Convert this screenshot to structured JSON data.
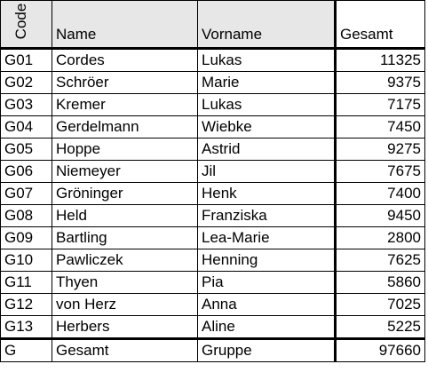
{
  "header": {
    "code": "Code",
    "name": "Name",
    "vorname": "Vorname",
    "gesamt": "Gesamt"
  },
  "rows": [
    {
      "code": "G01",
      "name": "Cordes",
      "vorname": "Lukas",
      "gesamt": "11325"
    },
    {
      "code": "G02",
      "name": "Schröer",
      "vorname": "Marie",
      "gesamt": "9375"
    },
    {
      "code": "G03",
      "name": "Kremer",
      "vorname": "Lukas",
      "gesamt": "7175"
    },
    {
      "code": "G04",
      "name": "Gerdelmann",
      "vorname": "Wiebke",
      "gesamt": "7450"
    },
    {
      "code": "G05",
      "name": "Hoppe",
      "vorname": "Astrid",
      "gesamt": "9275"
    },
    {
      "code": "G06",
      "name": "Niemeyer",
      "vorname": "Jil",
      "gesamt": "7675"
    },
    {
      "code": "G07",
      "name": "Gröninger",
      "vorname": "Henk",
      "gesamt": "7400"
    },
    {
      "code": "G08",
      "name": "Held",
      "vorname": "Franziska",
      "gesamt": "9450"
    },
    {
      "code": "G09",
      "name": "Bartling",
      "vorname": "Lea-Marie",
      "gesamt": "2800"
    },
    {
      "code": "G10",
      "name": "Pawliczek",
      "vorname": "Henning",
      "gesamt": "7625"
    },
    {
      "code": "G11",
      "name": "Thyen",
      "vorname": "Pia",
      "gesamt": "5860"
    },
    {
      "code": "G12",
      "name": "von Herz",
      "vorname": "Anna",
      "gesamt": "7025"
    },
    {
      "code": "G13",
      "name": "Herbers",
      "vorname": "Aline",
      "gesamt": "5225"
    }
  ],
  "total": {
    "code": "G",
    "name": "Gesamt",
    "vorname": "Gruppe",
    "gesamt": "97660"
  }
}
